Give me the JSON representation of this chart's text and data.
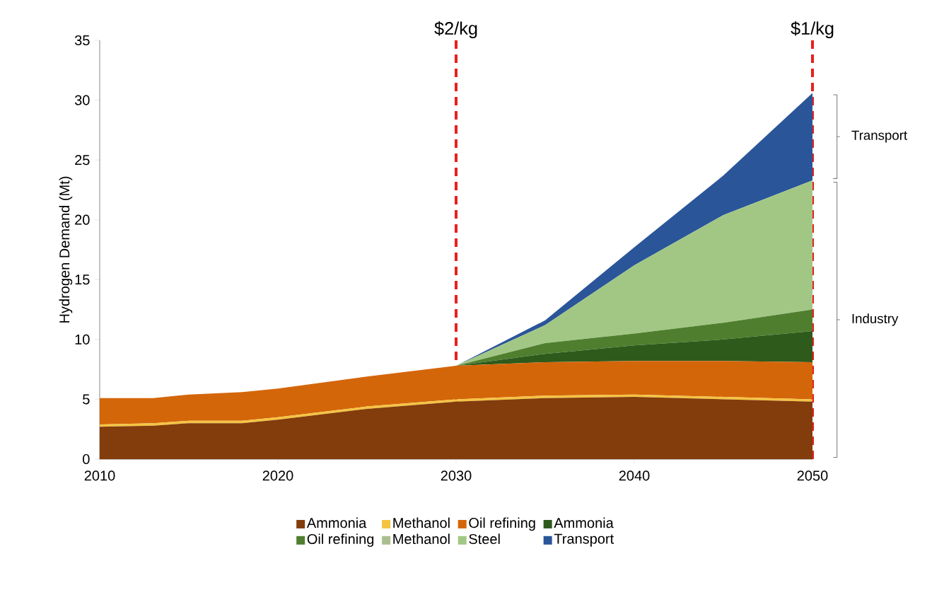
{
  "chart_data": {
    "type": "area",
    "stacked": true,
    "ylabel": "Hydrogen Demand (Mt)",
    "x": [
      2010,
      2013,
      2015,
      2018,
      2020,
      2025,
      2030,
      2035,
      2040,
      2045,
      2050
    ],
    "series": [
      {
        "name": "Ammonia",
        "color": "#833c0b",
        "values": [
          2.7,
          2.8,
          3.0,
          3.0,
          3.3,
          4.2,
          4.8,
          5.1,
          5.2,
          5.0,
          4.8
        ]
      },
      {
        "name": "Methanol",
        "color": "#f5c342",
        "values": [
          0.2,
          0.2,
          0.2,
          0.2,
          0.2,
          0.2,
          0.2,
          0.2,
          0.2,
          0.2,
          0.2
        ]
      },
      {
        "name": "Oil refining",
        "color": "#d4660a",
        "values": [
          2.2,
          2.1,
          2.2,
          2.4,
          2.4,
          2.5,
          2.8,
          2.8,
          2.8,
          3.0,
          3.1
        ]
      },
      {
        "name": "Ammonia",
        "color": "#2e5a1c",
        "values": [
          0,
          0,
          0,
          0,
          0,
          0,
          0,
          0.7,
          1.3,
          1.8,
          2.6
        ]
      },
      {
        "name": "Oil refining",
        "color": "#4f7f2e",
        "values": [
          0,
          0,
          0,
          0,
          0,
          0,
          0,
          0.9,
          1.0,
          1.4,
          1.8
        ]
      },
      {
        "name": "Methanol",
        "color": "#a9bf90",
        "values": [
          null,
          null,
          null,
          null,
          null,
          null,
          null,
          null,
          null,
          null,
          null
        ]
      },
      {
        "name": "Steel",
        "color": "#a2c785",
        "values": [
          0,
          0,
          0,
          0,
          0,
          0,
          0,
          1.5,
          5.7,
          9.0,
          10.8
        ]
      },
      {
        "name": "Transport",
        "color": "#2a5599",
        "values": [
          0,
          0,
          0,
          0,
          0,
          0,
          0,
          0.4,
          1.5,
          3.3,
          7.3
        ]
      }
    ],
    "xlim": [
      2010,
      2050
    ],
    "ylim": [
      0,
      35
    ],
    "xticks": [
      2010,
      2020,
      2030,
      2040,
      2050
    ],
    "yticks": [
      0,
      5,
      10,
      15,
      20,
      25,
      30,
      35
    ],
    "ref_lines": [
      {
        "axis": "x",
        "value": 2030,
        "label": "$2/kg",
        "color": "#e8201e",
        "line_style": "dashed"
      },
      {
        "axis": "x",
        "value": 2050,
        "label": "$1/kg",
        "color": "#e8201e",
        "line_style": "dashed"
      }
    ],
    "annotations": [
      "Transport",
      "Industry"
    ],
    "legend": "bottom",
    "grid": false
  }
}
